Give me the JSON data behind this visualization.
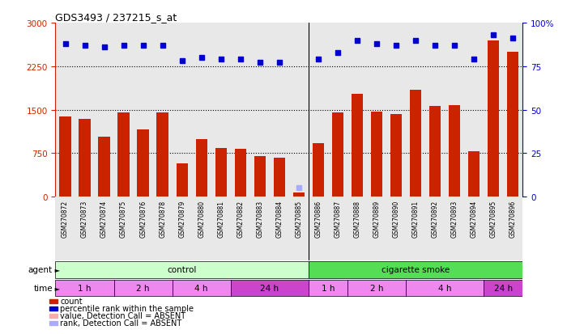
{
  "title": "GDS3493 / 237215_s_at",
  "samples": [
    "GSM270872",
    "GSM270873",
    "GSM270874",
    "GSM270875",
    "GSM270876",
    "GSM270878",
    "GSM270879",
    "GSM270880",
    "GSM270881",
    "GSM270882",
    "GSM270883",
    "GSM270884",
    "GSM270885",
    "GSM270886",
    "GSM270887",
    "GSM270888",
    "GSM270889",
    "GSM270890",
    "GSM270891",
    "GSM270892",
    "GSM270893",
    "GSM270894",
    "GSM270895",
    "GSM270896"
  ],
  "counts": [
    1390,
    1340,
    1030,
    1450,
    1160,
    1450,
    580,
    1000,
    840,
    830,
    700,
    670,
    80,
    920,
    1450,
    1780,
    1470,
    1420,
    1850,
    1560,
    1580,
    780,
    2700,
    2500
  ],
  "percentile_ranks": [
    88,
    87,
    86,
    87,
    87,
    87,
    78,
    80,
    79,
    79,
    77,
    77,
    5,
    79,
    83,
    90,
    88,
    87,
    90,
    87,
    87,
    79,
    93,
    91
  ],
  "absent_rank_idx": [
    12
  ],
  "absent_count_idx": [],
  "ylim_left": [
    0,
    3000
  ],
  "ylim_right": [
    0,
    100
  ],
  "yticks_left": [
    0,
    750,
    1500,
    2250,
    3000
  ],
  "yticks_right": [
    0,
    25,
    50,
    75,
    100
  ],
  "bar_color": "#cc2200",
  "dot_color": "#0000cc",
  "absent_rank_color": "#aaaaff",
  "absent_count_color": "#ffaaaa",
  "grid_color": "#000000",
  "bg_color": "#e8e8e8",
  "agent_control_color": "#ccffcc",
  "agent_smoke_color": "#55dd55",
  "time_light_color": "#ee88ee",
  "time_dark_color": "#cc44cc",
  "n_control": 13,
  "n_smoke": 11,
  "control_label": "control",
  "smoke_label": "cigarette smoke",
  "time_labels_control": [
    "1 h",
    "2 h",
    "4 h",
    "24 h"
  ],
  "time_labels_smoke": [
    "1 h",
    "2 h",
    "4 h",
    "24 h"
  ],
  "time_boundaries_control": [
    0,
    3,
    6,
    9,
    13
  ],
  "time_boundaries_smoke": [
    13,
    15,
    18,
    22,
    24
  ],
  "time_colors_control": [
    "#ee88ee",
    "#ee88ee",
    "#ee88ee",
    "#cc44cc"
  ],
  "time_colors_smoke": [
    "#ee88ee",
    "#ee88ee",
    "#ee88ee",
    "#cc44cc"
  ],
  "legend_items": [
    {
      "color": "#cc2200",
      "label": "count"
    },
    {
      "color": "#0000cc",
      "label": "percentile rank within the sample"
    },
    {
      "color": "#ffaaaa",
      "label": "value, Detection Call = ABSENT"
    },
    {
      "color": "#aaaaff",
      "label": "rank, Detection Call = ABSENT"
    }
  ]
}
